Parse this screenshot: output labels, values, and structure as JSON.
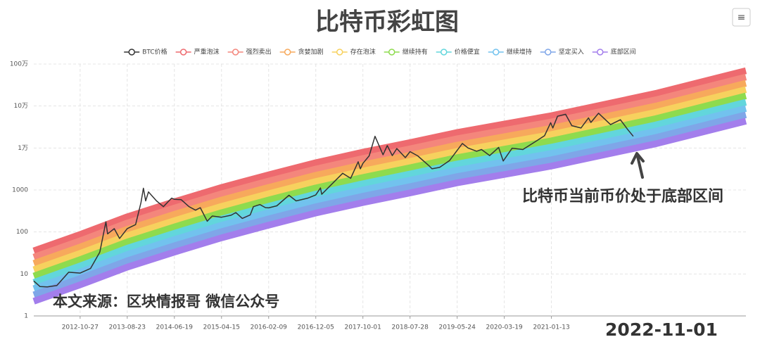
{
  "chart_data": {
    "type": "line",
    "title": "比特币彩虹图",
    "annotations": [
      "比特币当前币价处于底部区间",
      "本文来源：区块情报哥 微信公众号",
      "2022-11-01"
    ],
    "menu_icon": "≡",
    "log_y": true,
    "grid": true,
    "legend": "top",
    "xlim": [
      "2012-01-06",
      "2024-06-04"
    ],
    "xticks": [
      "2012-10-27",
      "2013-08-23",
      "2014-06-19",
      "2015-04-15",
      "2016-02-09",
      "2016-12-05",
      "2017-10-01",
      "2018-07-28",
      "2019-05-24",
      "2020-03-19",
      "2021-01-13"
    ],
    "ylim": [
      1,
      1000000
    ],
    "yticks": [
      1,
      10,
      100,
      1000,
      {
        "value": 10000,
        "label": "1万"
      },
      {
        "value": 100000,
        "label": "10万"
      },
      {
        "value": 1000000,
        "label": "100万"
      }
    ],
    "x": [
      "2012-01-06",
      "2012-10-27",
      "2013-08-23",
      "2014-06-19",
      "2015-04-15",
      "2016-02-09",
      "2016-12-05",
      "2017-10-01",
      "2018-07-28",
      "2019-05-24",
      "2020-03-19",
      "2021-01-13",
      "2022-11-09",
      "2024-06-04"
    ],
    "series": [
      {
        "name": "BTC价格",
        "color": "#333333",
        "x": [
          "2012-01-06",
          "2012-02-15",
          "2012-04-01",
          "2012-06-01",
          "2012-08-15",
          "2012-10-27",
          "2013-01-01",
          "2013-03-01",
          "2013-04-09",
          "2013-04-20",
          "2013-06-01",
          "2013-07-05",
          "2013-08-23",
          "2013-10-15",
          "2013-11-18",
          "2013-12-04",
          "2013-12-18",
          "2014-01-05",
          "2014-02-25",
          "2014-04-10",
          "2014-06-01",
          "2014-06-19",
          "2014-08-01",
          "2014-09-20",
          "2014-11-01",
          "2014-12-01",
          "2015-01-14",
          "2015-02-15",
          "2015-04-15",
          "2015-06-15",
          "2015-07-15",
          "2015-08-25",
          "2015-10-15",
          "2015-11-04",
          "2015-12-15",
          "2016-01-20",
          "2016-02-09",
          "2016-04-01",
          "2016-06-17",
          "2016-08-02",
          "2016-10-15",
          "2016-12-05",
          "2017-01-04",
          "2017-01-12",
          "2017-03-01",
          "2017-05-25",
          "2017-07-15",
          "2017-09-01",
          "2017-09-15",
          "2017-10-01",
          "2017-11-10",
          "2017-12-17",
          "2018-02-06",
          "2018-03-05",
          "2018-04-06",
          "2018-05-05",
          "2018-06-28",
          "2018-07-28",
          "2018-09-15",
          "2018-11-25",
          "2018-12-15",
          "2019-02-01",
          "2019-04-05",
          "2019-06-26",
          "2019-08-01",
          "2019-09-25",
          "2019-10-26",
          "2019-12-17",
          "2020-02-12",
          "2020-03-12",
          "2020-05-08",
          "2020-07-15",
          "2020-09-01",
          "2020-11-30",
          "2021-01-08",
          "2021-01-22",
          "2021-02-21",
          "2021-04-13",
          "2021-05-23",
          "2021-07-20",
          "2021-09-06",
          "2021-09-21",
          "2021-11-09",
          "2022-01-24",
          "2022-03-28",
          "2022-05-12",
          "2022-06-18"
        ],
        "values": [
          6.8,
          5,
          4.9,
          5.3,
          11,
          10.5,
          13.5,
          33,
          175,
          90,
          120,
          70,
          120,
          150,
          500,
          1100,
          550,
          900,
          550,
          400,
          640,
          600,
          590,
          400,
          330,
          380,
          180,
          240,
          225,
          250,
          290,
          210,
          255,
          400,
          450,
          380,
          375,
          420,
          750,
          550,
          640,
          760,
          1120,
          790,
          1200,
          2500,
          1900,
          4700,
          3200,
          4300,
          6500,
          19000,
          6900,
          11400,
          6600,
          9700,
          5900,
          8200,
          6500,
          3800,
          3200,
          3450,
          5000,
          12800,
          10000,
          8400,
          9200,
          6600,
          10300,
          4900,
          9900,
          9200,
          11900,
          19600,
          40000,
          30000,
          57000,
          63500,
          34000,
          30000,
          52000,
          40700,
          67500,
          36000,
          47000,
          28000,
          19000
        ]
      },
      {
        "name": "严重泡沫",
        "color": "#ee6a6f",
        "values": [
          35.5,
          87.2,
          230,
          525,
          1150,
          2300,
          4470,
          7940,
          13500,
          23400,
          37200,
          58900,
          200000,
          692000
        ]
      },
      {
        "name": "强烈卖出",
        "color": "#f4867c",
        "values": [
          25.1,
          61.7,
          163,
          371,
          812,
          1630,
          3160,
          5620,
          9550,
          16600,
          26300,
          41700,
          141000,
          490000
        ]
      },
      {
        "name": "贪婪加剧",
        "color": "#f7a95c",
        "values": [
          17.8,
          43.7,
          115,
          263,
          575,
          1150,
          2240,
          3980,
          6760,
          11700,
          18600,
          29500,
          100000,
          347000
        ]
      },
      {
        "name": "存在泡沫",
        "color": "#f7d15e",
        "values": [
          12.6,
          30.9,
          81.5,
          186,
          407,
          815,
          1590,
          2820,
          4790,
          8320,
          13200,
          20900,
          70800,
          245000
        ]
      },
      {
        "name": "继续持有",
        "color": "#8edb4e",
        "values": [
          8.92,
          21.9,
          57.7,
          132,
          288,
          577,
          1120,
          1990,
          3390,
          5890,
          9330,
          14800,
          50100,
          174000
        ]
      },
      {
        "name": "价格便宜",
        "color": "#62d6dc",
        "values": [
          6.31,
          15.5,
          40.9,
          93.3,
          204,
          409,
          795,
          1410,
          2400,
          4170,
          6610,
          10500,
          35500,
          123000
        ]
      },
      {
        "name": "继续增持",
        "color": "#72c2ee",
        "values": [
          4.47,
          11.0,
          28.9,
          66.0,
          144,
          289,
          563,
          1000,
          1700,
          2950,
          4680,
          7410,
          25100,
          87100
        ]
      },
      {
        "name": "坚定买入",
        "color": "#7fa6e8",
        "values": [
          3.17,
          7.77,
          20.5,
          46.8,
          102,
          205,
          398,
          708,
          1200,
          2090,
          3310,
          5250,
          17800,
          61700
        ]
      },
      {
        "name": "底部区间",
        "color": "#a37eec",
        "values": [
          2.24,
          5.5,
          14.5,
          33.1,
          72.4,
          145,
          282,
          501,
          851,
          1480,
          2340,
          3720,
          12600,
          43700
        ]
      }
    ]
  }
}
